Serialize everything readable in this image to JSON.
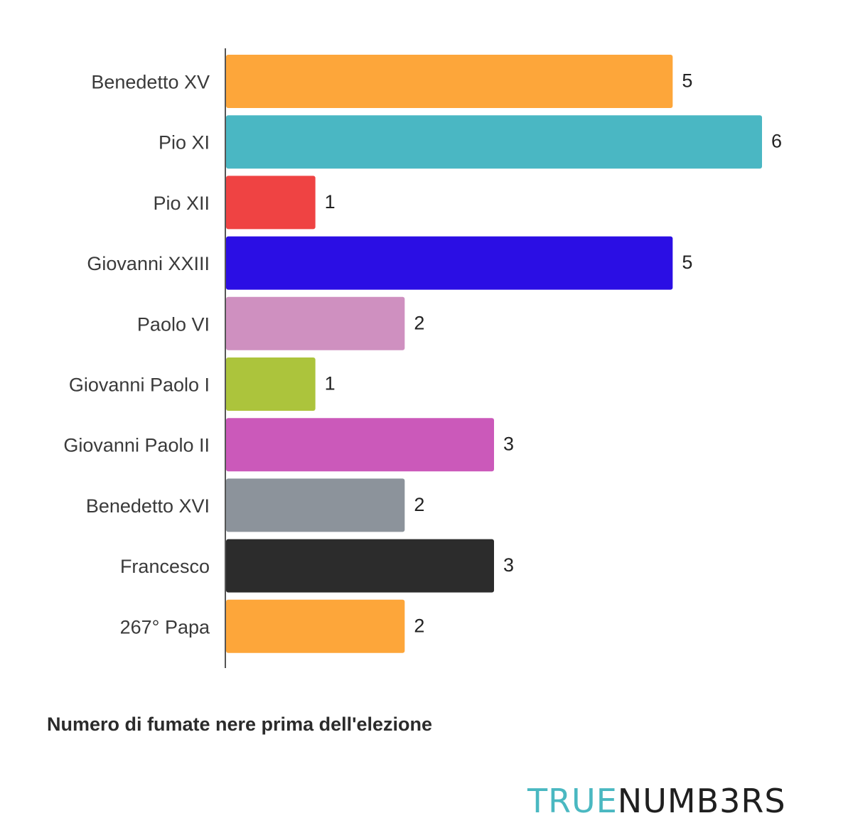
{
  "chart_data": {
    "type": "bar",
    "orientation": "horizontal",
    "categories": [
      "Benedetto XV",
      "Pio XI",
      "Pio XII",
      "Giovanni XXIII",
      "Paolo VI",
      "Giovanni Paolo I",
      "Giovanni Paolo II",
      "Benedetto XVI",
      "Francesco",
      "267° Papa"
    ],
    "values": [
      5,
      6,
      1,
      5,
      2,
      1,
      3,
      2,
      3,
      2
    ],
    "colors": [
      "#fda63a",
      "#4ab7c3",
      "#ef4343",
      "#2b0ee4",
      "#cf90c0",
      "#acc43c",
      "#cb59ba",
      "#8c939b",
      "#2c2c2c",
      "#fda63a"
    ],
    "title": "",
    "xlabel": "Numero di fumate nere prima dell'elezione",
    "ylabel": "",
    "xlim": [
      0,
      6
    ],
    "grid": false,
    "data_labels": true
  },
  "logo": {
    "part_a": "TRUE",
    "part_b": "NUMB3RS"
  }
}
